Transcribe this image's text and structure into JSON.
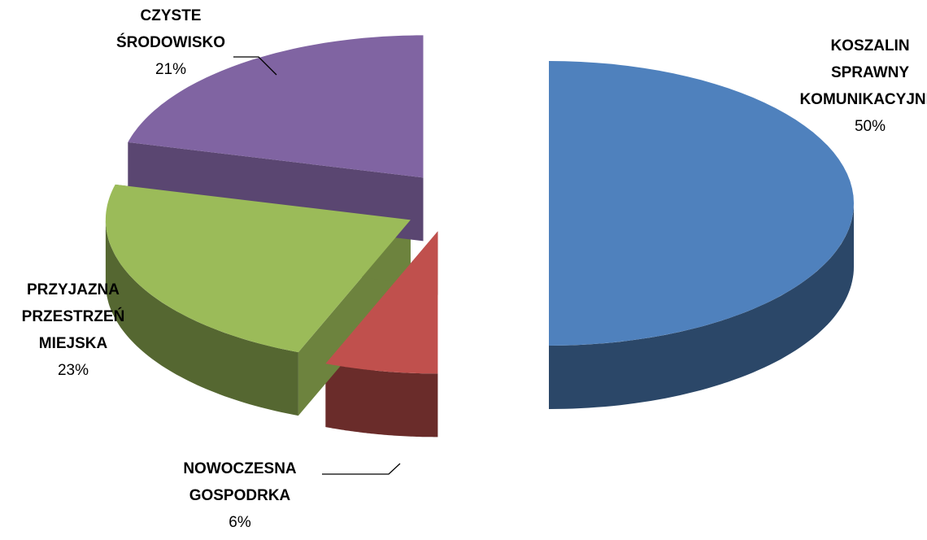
{
  "chart_data": {
    "type": "pie",
    "categories": [
      "KOSZALIN SPRAWNY KOMUNIKACYJNIE",
      "NOWOCZESNA GOSPODRKA",
      "PRZYJAZNA PRZESTRZEŃ MIEJSKA",
      "CZYSTE ŚRODOWISKO"
    ],
    "values": [
      50,
      6,
      23,
      21
    ],
    "value_labels": [
      "50%",
      "6%",
      "23%",
      "21%"
    ],
    "colors": [
      "#4f81bd",
      "#c0504d",
      "#9bbb59",
      "#8064a2"
    ]
  }
}
